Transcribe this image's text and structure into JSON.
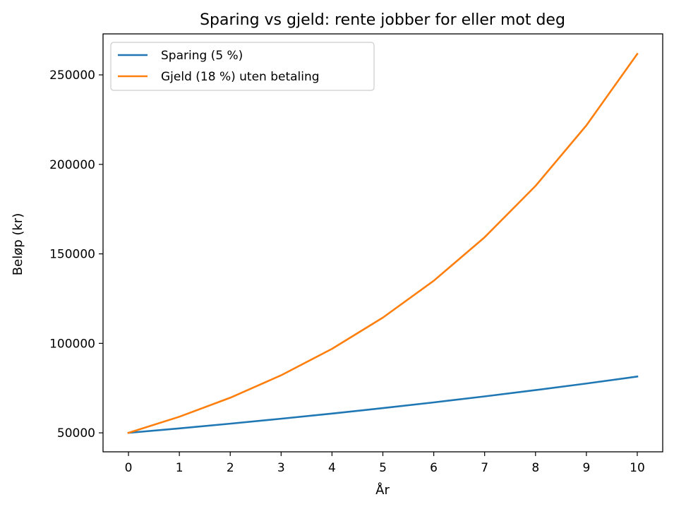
{
  "chart_data": {
    "type": "line",
    "title": "Sparing vs gjeld: rente jobber for eller mot deg",
    "xlabel": "År",
    "ylabel": "Beløp (kr)",
    "x": [
      0,
      1,
      2,
      3,
      4,
      5,
      6,
      7,
      8,
      9,
      10
    ],
    "x_ticks": [
      "0",
      "1",
      "2",
      "3",
      "4",
      "5",
      "6",
      "7",
      "8",
      "9",
      "10"
    ],
    "y_ticks": [
      "50000",
      "100000",
      "150000",
      "200000",
      "250000"
    ],
    "y_tick_values": [
      50000,
      100000,
      150000,
      200000,
      250000
    ],
    "xlim": [
      -0.5,
      10.5
    ],
    "ylim": [
      39400,
      272900
    ],
    "grid": false,
    "legend_position": "top-left",
    "series": [
      {
        "name": "Sparing (5 %)",
        "color": "#1f77b4",
        "values": [
          50000,
          52500,
          55125,
          57881,
          60775,
          63814,
          67005,
          70355,
          73873,
          77566,
          81445
        ]
      },
      {
        "name": "Gjeld (18 %) uten betaling",
        "color": "#ff7f0e",
        "values": [
          50000,
          59000,
          69620,
          82152,
          96939,
          114388,
          134978,
          159274,
          187943,
          221773,
          261692
        ]
      }
    ]
  }
}
